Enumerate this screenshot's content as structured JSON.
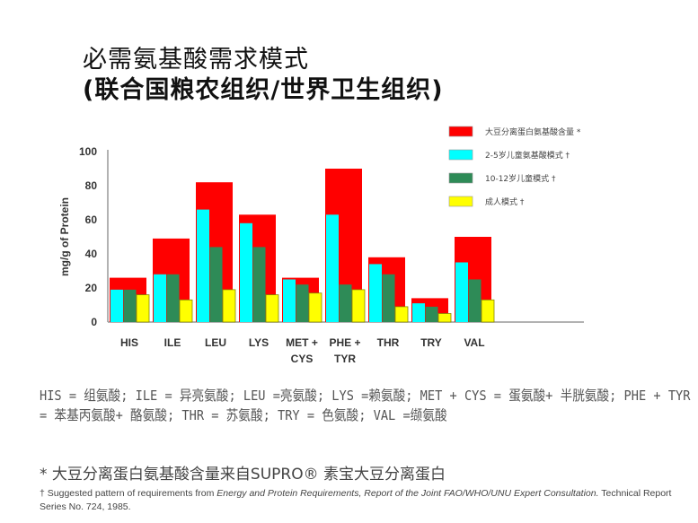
{
  "title_line1": "必需氨基酸需求模式",
  "title_line2": "(联合国粮农组织/世界卫生组织)",
  "chart_data": {
    "type": "bar",
    "ylabel": "mg/g of Protein",
    "ylim": [
      0,
      100
    ],
    "yticks": [
      "0",
      "20",
      "40",
      "60",
      "80",
      "100"
    ],
    "categories": [
      [
        "HIS"
      ],
      [
        "ILE"
      ],
      [
        "LEU"
      ],
      [
        "LYS"
      ],
      [
        "MET +",
        "CYS"
      ],
      [
        "PHE +",
        "TYR"
      ],
      [
        "THR"
      ],
      [
        "TRY"
      ],
      [
        "VAL"
      ]
    ],
    "series": [
      {
        "name": "大豆分离蛋白氨基酸含量 *",
        "color": "#ff0000",
        "values": [
          26,
          49,
          82,
          63,
          26,
          90,
          38,
          14,
          50
        ]
      },
      {
        "name": "2-5岁儿童氨基酸模式 †",
        "color": "#00ffff",
        "values": [
          19,
          28,
          66,
          58,
          25,
          63,
          34,
          11,
          35
        ]
      },
      {
        "name": "10-12岁儿童模式 †",
        "color": "#2e8b57",
        "values": [
          19,
          28,
          44,
          44,
          22,
          22,
          28,
          9,
          25
        ]
      },
      {
        "name": "成人模式 †",
        "color": "#ffff00",
        "values": [
          16,
          13,
          19,
          16,
          17,
          19,
          9,
          5,
          13
        ]
      }
    ],
    "legend": "top-right",
    "grid": false
  },
  "notes": {
    "abbrev": "HIS = 组氨酸; ILE = 异亮氨酸; LEU =亮氨酸; LYS =赖氨酸; MET + CYS = 蛋氨酸+ 半胱氨酸; PHE + TYR = 苯基丙氨酸+ 酪氨酸; THR = 苏氨酸; TRY = 色氨酸; VAL =缬氨酸",
    "star": "* 大豆分离蛋白氨基酸含量来自SUPRO® 素宝大豆分离蛋白",
    "dagger_prefix": "† Suggested pattern of requirements from ",
    "dagger_italic1": "Energy and Protein Requirements, Report of the Joint FAO/WHO/UNU Expert Consultation.",
    "dagger_suffix": "  Technical Report Series No. 724, 1985."
  }
}
